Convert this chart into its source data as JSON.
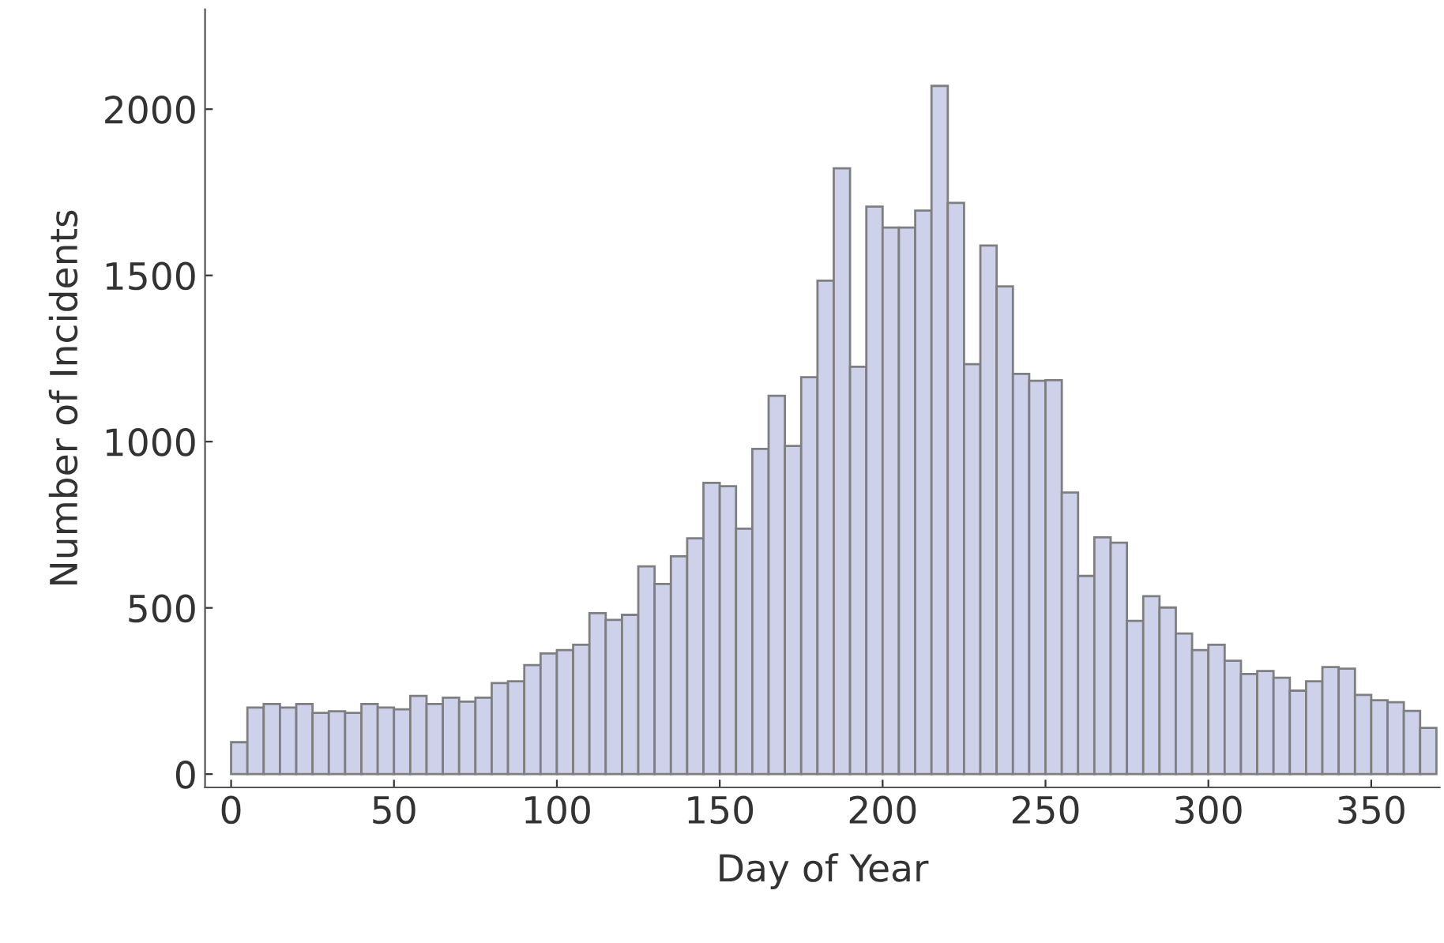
{
  "chart_data": {
    "type": "histogram",
    "xlabel": "Day of Year",
    "ylabel": "Number of Incidents",
    "bins": [
      0,
      5,
      10,
      15,
      20,
      25,
      30,
      35,
      40,
      45,
      50,
      55,
      60,
      65,
      70,
      75,
      80,
      85,
      90,
      95,
      100,
      105,
      110,
      115,
      120,
      125,
      130,
      135,
      140,
      145,
      150,
      155,
      160,
      165,
      170,
      175,
      180,
      185,
      190,
      195,
      200,
      205,
      210,
      215,
      220,
      225,
      230,
      235,
      240,
      245,
      250,
      255,
      260,
      265,
      270,
      275,
      280,
      285,
      290,
      295,
      300,
      305,
      310,
      315,
      320,
      325,
      330,
      335,
      340,
      345,
      350,
      355,
      360,
      365,
      370
    ],
    "values": [
      96,
      200,
      211,
      200,
      211,
      184,
      189,
      184,
      211,
      200,
      195,
      235,
      211,
      230,
      218,
      230,
      274,
      279,
      328,
      363,
      373,
      389,
      484,
      464,
      479,
      625,
      572,
      655,
      709,
      876,
      866,
      738,
      978,
      1138,
      987,
      1194,
      1484,
      1822,
      1225,
      1707,
      1644,
      1644,
      1695,
      2070,
      1718,
      1233,
      1590,
      1467,
      1204,
      1183,
      1185,
      847,
      596,
      712,
      696,
      461,
      535,
      501,
      423,
      373,
      389,
      341,
      301,
      310,
      290,
      251,
      279,
      322,
      317,
      238,
      222,
      216,
      190,
      139
    ],
    "color": "#cdd1ea",
    "xlim": [
      -8,
      371
    ],
    "ylim": [
      -40,
      2300
    ],
    "xticks": [
      0,
      50,
      100,
      150,
      200,
      250,
      300,
      350
    ],
    "yticks": [
      0,
      500,
      1000,
      1500,
      2000
    ],
    "grid": false
  }
}
